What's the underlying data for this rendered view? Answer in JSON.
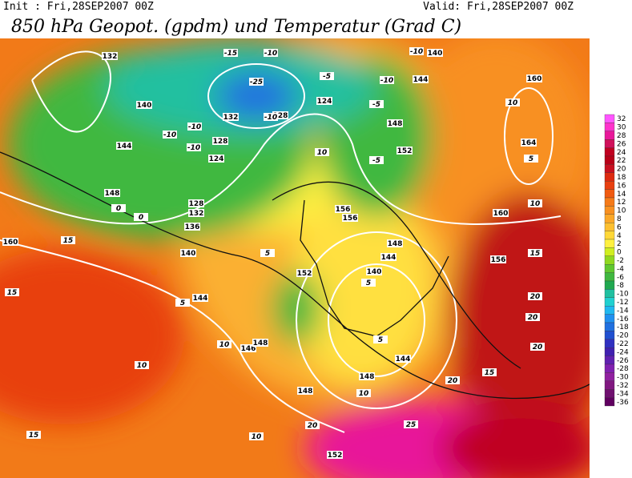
{
  "header": {
    "init": "Init : Fri,28SEP2007 00Z",
    "valid": "Valid: Fri,28SEP2007 00Z",
    "title": "850 hPa Geopot. (gpdm) und Temperatur (Grad C)"
  },
  "colorbar": {
    "labels": [
      32,
      30,
      28,
      26,
      24,
      22,
      20,
      18,
      16,
      14,
      12,
      10,
      8,
      6,
      4,
      2,
      0,
      -2,
      -4,
      -6,
      -8,
      -10,
      -12,
      -14,
      -16,
      -18,
      -20,
      -22,
      -24,
      -26,
      -28,
      -30,
      -32,
      -34,
      -36
    ],
    "colors": [
      "#ff55ff",
      "#ff33cc",
      "#e8189a",
      "#d0105a",
      "#c00020",
      "#b80018",
      "#c81020",
      "#dd2a10",
      "#e84010",
      "#f05a10",
      "#f57a18",
      "#f89020",
      "#fba828",
      "#fdc030",
      "#ffd838",
      "#fff040",
      "#d0ee20",
      "#90d820",
      "#60c830",
      "#40b840",
      "#20a850",
      "#20c0a0",
      "#20d0d0",
      "#20b8f0",
      "#2090f0",
      "#2070e0",
      "#2050d0",
      "#3030c0",
      "#4020b0",
      "#6020b0",
      "#8020b0",
      "#9020a0",
      "#801880",
      "#701070",
      "#600060"
    ]
  },
  "geopotential_labels": [
    132,
    140,
    144,
    148,
    136,
    140,
    144,
    128,
    132,
    124,
    128,
    132,
    124,
    128,
    148,
    152,
    156,
    156,
    160,
    164,
    160,
    144,
    140,
    148,
    144,
    140,
    152,
    146,
    148,
    148,
    144,
    148,
    152,
    156,
    160
  ],
  "temperature_labels": [
    -10,
    -10,
    -10,
    -15,
    -25,
    -10,
    -10,
    -5,
    -10,
    -5,
    -5,
    -10,
    0,
    0,
    5,
    5,
    10,
    10,
    5,
    10,
    15,
    15,
    15,
    20,
    20,
    20,
    15,
    10,
    10,
    10,
    10,
    20,
    25,
    15,
    20,
    5,
    5
  ]
}
